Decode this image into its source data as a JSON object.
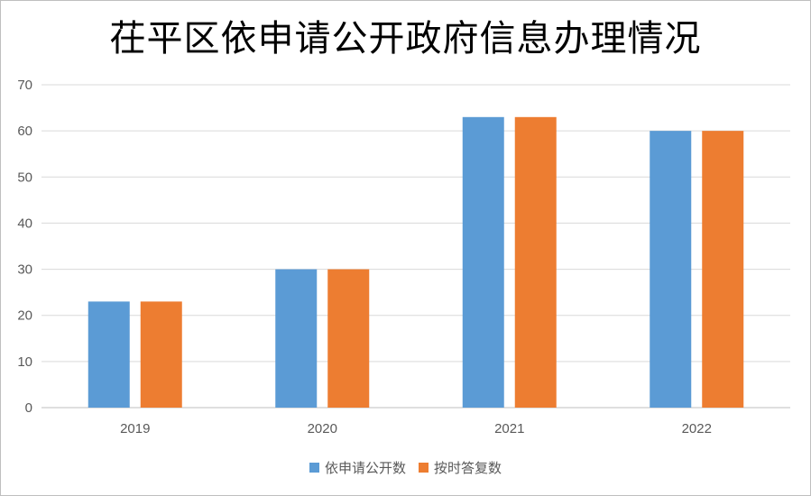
{
  "chart_data": {
    "type": "bar",
    "title": "茌平区依申请公开政府信息办理情况",
    "categories": [
      "2019",
      "2020",
      "2021",
      "2022"
    ],
    "series": [
      {
        "name": "依申请公开数",
        "values": [
          23,
          30,
          63,
          60
        ],
        "color": "#5b9bd5"
      },
      {
        "name": "按时答复数",
        "values": [
          23,
          30,
          63,
          60
        ],
        "color": "#ed7d31"
      }
    ],
    "ylim": [
      0,
      70
    ],
    "yticks": [
      0,
      10,
      20,
      30,
      40,
      50,
      60,
      70
    ],
    "grid": true,
    "legend_position": "bottom"
  }
}
